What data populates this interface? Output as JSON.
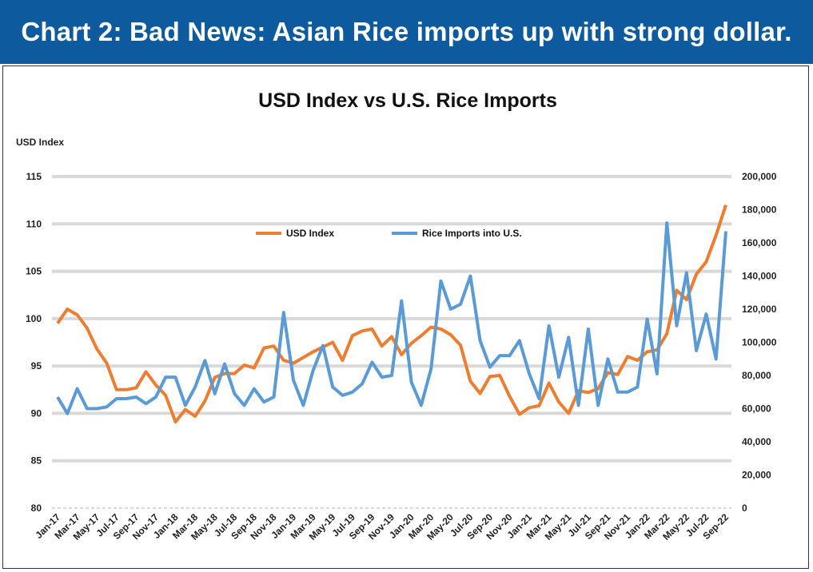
{
  "header": {
    "title": "Chart 2: Bad News: Asian Rice imports up with strong dollar."
  },
  "chart_data": {
    "type": "line",
    "title": "USD Index vs U.S. Rice Imports",
    "ylabel": "USD Index",
    "ylim": [
      80,
      115
    ],
    "y_ticks": [
      "80",
      "85",
      "90",
      "95",
      "100",
      "105",
      "110",
      "115"
    ],
    "y2lim": [
      0,
      200000
    ],
    "y2_ticks": [
      "0",
      "20,000",
      "40,000",
      "60,000",
      "80,000",
      "100,000",
      "120,000",
      "140,000",
      "160,000",
      "180,000",
      "200,000"
    ],
    "grid": true,
    "legend": "top-center",
    "x_labels": [
      "Jan-17",
      "Mar-17",
      "May-17",
      "Jul-17",
      "Sep-17",
      "Nov-17",
      "Jan-18",
      "Mar-18",
      "May-18",
      "Jul-18",
      "Sep-18",
      "Nov-18",
      "Jan-19",
      "Mar-19",
      "May-19",
      "Jul-19",
      "Sep-19",
      "Nov-19",
      "Jan-20",
      "Mar-20",
      "May-20",
      "Jul-20",
      "Sep-20",
      "Nov-20",
      "Jan-21",
      "Mar-21",
      "May-21",
      "Jul-21",
      "Sep-21",
      "Nov-21",
      "Jan-22",
      "Mar-22",
      "May-22",
      "Jul-22",
      "Sep-22"
    ],
    "series": [
      {
        "name": "USD Index",
        "axis": "left",
        "color": "#ed7d31",
        "values": [
          99.5,
          101,
          100.4,
          99,
          96.8,
          95.3,
          92.5,
          92.5,
          92.7,
          94.4,
          93,
          91.9,
          89.1,
          90.4,
          89.7,
          91.3,
          93.8,
          94.2,
          94.2,
          95.1,
          94.8,
          96.9,
          97.1,
          95.6,
          95.3,
          95.9,
          96.5,
          97,
          97.5,
          95.6,
          98.2,
          98.7,
          98.9,
          97.1,
          98.1,
          96.2,
          97.4,
          98.2,
          99.1,
          98.9,
          98.3,
          97.2,
          93.4,
          92.1,
          93.9,
          94,
          91.8,
          89.9,
          90.6,
          90.8,
          93.2,
          91.2,
          90,
          92.4,
          92.2,
          92.6,
          94.3,
          94.1,
          96,
          95.6,
          96.5,
          96.7,
          98.4,
          103,
          102,
          104.7,
          106,
          108.8,
          112
        ]
      },
      {
        "name": "Rice Imports into U.S.",
        "axis": "right",
        "color": "#5b9bd5",
        "values": [
          67000,
          57000,
          72000,
          60000,
          60000,
          61000,
          66000,
          66000,
          67000,
          63000,
          67000,
          79000,
          79000,
          62000,
          73000,
          89000,
          69000,
          87000,
          69000,
          62000,
          72000,
          64000,
          67000,
          118000,
          77000,
          62000,
          83000,
          98000,
          73000,
          68000,
          70000,
          75000,
          88000,
          79000,
          80000,
          125000,
          76000,
          62000,
          84000,
          137000,
          120000,
          123000,
          140000,
          101000,
          85000,
          92000,
          92000,
          101000,
          81000,
          66000,
          110000,
          79000,
          103000,
          62000,
          108000,
          62000,
          90000,
          70000,
          70000,
          73000,
          114000,
          81000,
          172000,
          110000,
          142000,
          95000,
          117000,
          90000,
          167000
        ]
      }
    ]
  }
}
